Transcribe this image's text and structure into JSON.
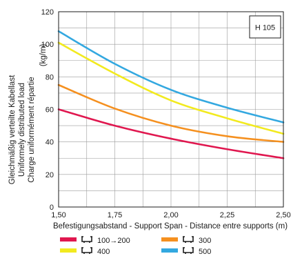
{
  "chart_data": {
    "type": "line",
    "model_label": "H 105",
    "unit": "(kg/m)",
    "ylabel_lines": [
      "Gleichmäßig verteilte Kabellast",
      "Uniformely distributed load",
      "Charge uniformément répartie"
    ],
    "xlabel": "Befestigungsabstand - Support Span - Distance entre supports (m)",
    "x_ticks": [
      "1,50",
      "1,75",
      "2,00",
      "2,25",
      "2,50"
    ],
    "y_ticks": [
      "0",
      "20",
      "40",
      "60",
      "80",
      "100",
      "120"
    ],
    "xlim": [
      1.5,
      2.5
    ],
    "ylim": [
      0,
      120
    ],
    "grid": true,
    "legend_position": "bottom",
    "x": [
      1.5,
      1.75,
      2.0,
      2.25,
      2.5
    ],
    "series": [
      {
        "name": "100→200",
        "color": "#e0174f",
        "values": [
          60,
          50,
          42,
          35.5,
          30
        ]
      },
      {
        "name": "400",
        "color": "#f2ea1f",
        "values": [
          101,
          82,
          65.5,
          54.5,
          45
        ]
      },
      {
        "name": "300",
        "color": "#f5901f",
        "values": [
          75,
          60.5,
          50,
          43.5,
          40
        ]
      },
      {
        "name": "500",
        "color": "#33a8e0",
        "values": [
          108,
          88,
          72,
          61,
          52
        ]
      }
    ]
  }
}
